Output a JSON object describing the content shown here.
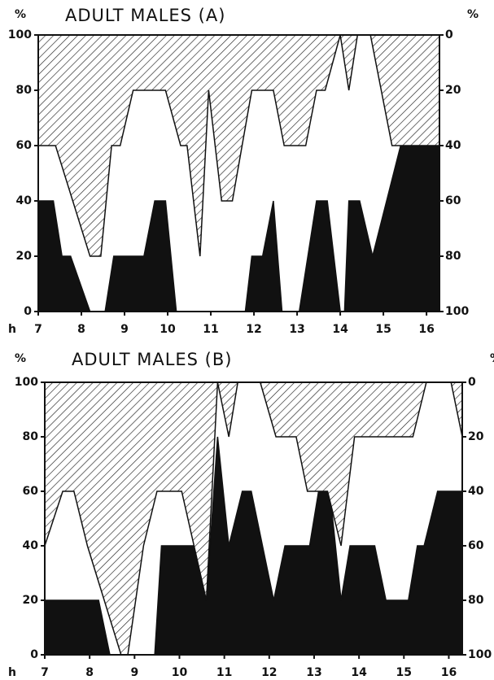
{
  "chart_data": [
    {
      "type": "area",
      "title": "ADULT MALES (A)",
      "ylabel": "%",
      "y2label": "%",
      "xlabel": "h",
      "xlim": [
        7,
        16.3
      ],
      "xticks": [
        7,
        8,
        9,
        10,
        11,
        12,
        13,
        14,
        15,
        16
      ],
      "ylim": [
        0,
        100
      ],
      "yticks": [
        0,
        20,
        40,
        60,
        80,
        100
      ],
      "y2lim": [
        0,
        100
      ],
      "y2ticks": [
        0,
        20,
        40,
        60,
        80,
        100
      ],
      "y2_inverted": true,
      "series": [
        {
          "color": "#111111",
          "fill": "solid",
          "x": [
            7,
            7.35,
            7.55,
            7.75,
            8.2,
            8.55,
            8.75,
            9.45,
            9.7,
            9.95,
            10.2,
            11.8,
            11.95,
            12.2,
            12.45,
            12.65,
            13.05,
            13.45,
            13.7,
            14.0,
            14.1,
            14.2,
            14.45,
            14.75,
            15.4,
            16.3
          ],
          "values": [
            40,
            40,
            20,
            20,
            0,
            0,
            20,
            20,
            40,
            40,
            0,
            0,
            20,
            20,
            40,
            0,
            0,
            40,
            40,
            0,
            0,
            40,
            40,
            20,
            60,
            60
          ]
        },
        {
          "color": "#111111",
          "fill": "hatch",
          "axis": "y2",
          "x": [
            7,
            7.4,
            8.2,
            8.45,
            8.7,
            8.9,
            9.2,
            9.95,
            10.3,
            10.45,
            10.75,
            10.95,
            11.25,
            11.5,
            11.95,
            12.45,
            12.7,
            13.2,
            13.45,
            13.65,
            14.0,
            14.2,
            14.4,
            14.7,
            15.2,
            16.3
          ],
          "values": [
            40,
            40,
            80,
            80,
            40,
            40,
            20,
            20,
            40,
            40,
            80,
            20,
            60,
            60,
            20,
            20,
            40,
            40,
            20,
            20,
            0,
            20,
            0,
            0,
            40,
            40
          ]
        }
      ]
    },
    {
      "type": "area",
      "title": "ADULT MALES (B)",
      "ylabel": "%",
      "y2label": "%",
      "xlabel": "h",
      "xlim": [
        7,
        16.3
      ],
      "xticks": [
        7,
        8,
        9,
        10,
        11,
        12,
        13,
        14,
        15,
        16
      ],
      "ylim": [
        0,
        100
      ],
      "yticks": [
        0,
        20,
        40,
        60,
        80,
        100
      ],
      "y2lim": [
        0,
        100
      ],
      "y2ticks": [
        0,
        20,
        40,
        60,
        80,
        100
      ],
      "y2_inverted": true,
      "series": [
        {
          "color": "#111111",
          "fill": "solid",
          "x": [
            7,
            8.2,
            8.45,
            9.45,
            9.6,
            10.35,
            10.6,
            10.85,
            11.1,
            11.4,
            11.6,
            12.1,
            12.35,
            12.9,
            13.1,
            13.35,
            13.6,
            13.8,
            14.35,
            14.6,
            15.1,
            15.3,
            15.45,
            15.75,
            16.3
          ],
          "values": [
            20,
            20,
            0,
            0,
            40,
            40,
            20,
            80,
            40,
            60,
            60,
            20,
            40,
            40,
            60,
            60,
            20,
            40,
            40,
            20,
            20,
            40,
            40,
            60,
            60
          ]
        },
        {
          "color": "#111111",
          "fill": "hatch",
          "axis": "y2",
          "x": [
            7,
            7.4,
            7.65,
            7.95,
            8.7,
            8.85,
            9.2,
            9.5,
            10.05,
            10.6,
            10.85,
            11.1,
            11.3,
            11.8,
            12.15,
            12.6,
            12.85,
            13.3,
            13.6,
            13.9,
            15.2,
            15.5,
            16.05,
            16.3
          ],
          "values": [
            60,
            40,
            40,
            60,
            100,
            100,
            60,
            40,
            40,
            80,
            0,
            20,
            0,
            0,
            20,
            20,
            40,
            40,
            60,
            20,
            20,
            0,
            0,
            20
          ]
        }
      ]
    }
  ]
}
